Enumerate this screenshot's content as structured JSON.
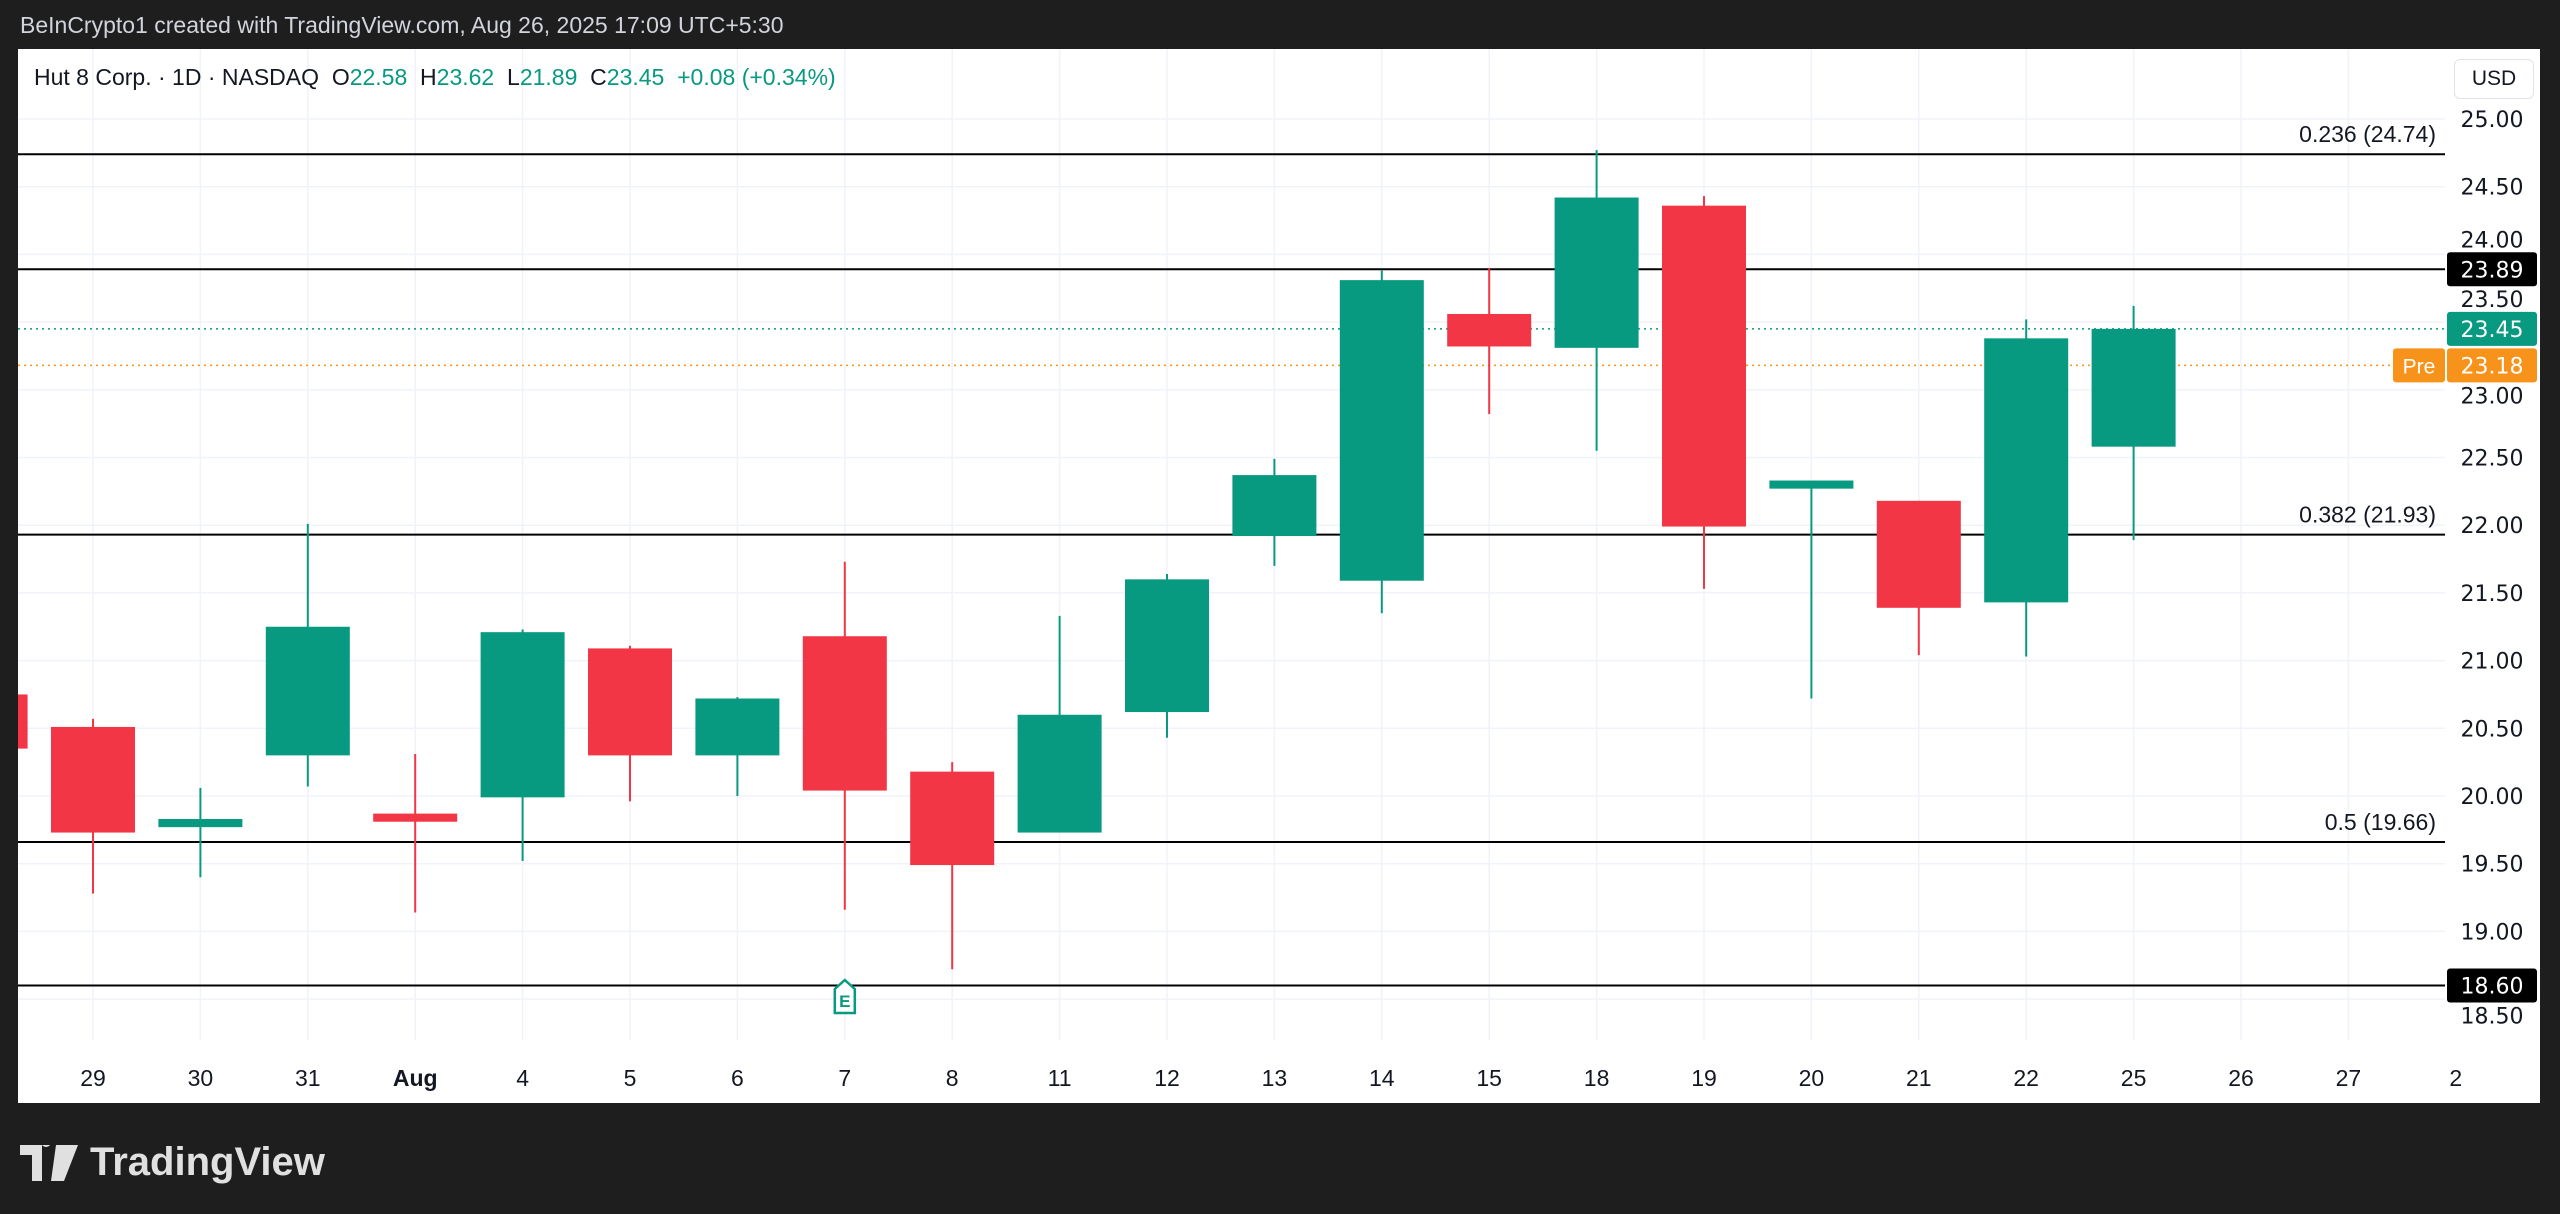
{
  "caption": "BeInCrypto1 created with TradingView.com, Aug 26, 2025 17:09 UTC+5:30",
  "legend": {
    "symbol": "Hut 8 Corp. · 1D · NASDAQ",
    "o_label": "O",
    "o": "22.58",
    "h_label": "H",
    "h": "23.62",
    "l_label": "L",
    "l": "21.89",
    "c_label": "C",
    "c": "23.45",
    "change": "+0.08 (+0.34%)"
  },
  "currency": "USD",
  "brand": "TradingView",
  "colors": {
    "up": "#089981",
    "down": "#f23645",
    "pre": "#f7931a",
    "level": "#000000"
  },
  "chart_data": {
    "type": "candlestick",
    "ylim": [
      18.3,
      25.2
    ],
    "yticks": [
      "25.00",
      "24.50",
      "24.00",
      "23.50",
      "23.00",
      "22.50",
      "22.00",
      "21.50",
      "21.00",
      "20.50",
      "20.00",
      "19.50",
      "19.00",
      "18.50"
    ],
    "x_labels": [
      "29",
      "30",
      "31",
      "Aug",
      "4",
      "5",
      "6",
      "7",
      "8",
      "11",
      "12",
      "13",
      "14",
      "15",
      "18",
      "19",
      "20",
      "21",
      "22",
      "25",
      "26",
      "27",
      "2"
    ],
    "candles": [
      {
        "date": "Jul 28",
        "o": 20.75,
        "h": 20.8,
        "l": 20.3,
        "c": 20.35
      },
      {
        "date": "29",
        "o": 20.51,
        "h": 20.57,
        "l": 19.28,
        "c": 19.73
      },
      {
        "date": "30",
        "o": 19.77,
        "h": 20.06,
        "l": 19.4,
        "c": 19.83
      },
      {
        "date": "31",
        "o": 20.3,
        "h": 22.01,
        "l": 20.07,
        "c": 21.25
      },
      {
        "date": "Aug 1",
        "o": 19.87,
        "h": 20.31,
        "l": 19.14,
        "c": 19.81
      },
      {
        "date": "4",
        "o": 19.99,
        "h": 21.23,
        "l": 19.52,
        "c": 21.21
      },
      {
        "date": "5",
        "o": 21.09,
        "h": 21.11,
        "l": 19.96,
        "c": 20.3
      },
      {
        "date": "6",
        "o": 20.3,
        "h": 20.73,
        "l": 20.0,
        "c": 20.72
      },
      {
        "date": "7",
        "o": 21.18,
        "h": 21.73,
        "l": 19.16,
        "c": 20.04
      },
      {
        "date": "8",
        "o": 20.18,
        "h": 20.25,
        "l": 18.72,
        "c": 19.49
      },
      {
        "date": "11",
        "o": 19.73,
        "h": 21.33,
        "l": 19.73,
        "c": 20.6
      },
      {
        "date": "12",
        "o": 20.62,
        "h": 21.64,
        "l": 20.43,
        "c": 21.6
      },
      {
        "date": "13",
        "o": 21.92,
        "h": 22.49,
        "l": 21.7,
        "c": 22.37
      },
      {
        "date": "14",
        "o": 21.59,
        "h": 23.88,
        "l": 21.35,
        "c": 23.81
      },
      {
        "date": "15",
        "o": 23.56,
        "h": 23.9,
        "l": 22.82,
        "c": 23.32
      },
      {
        "date": "18",
        "o": 23.31,
        "h": 24.77,
        "l": 22.55,
        "c": 24.42
      },
      {
        "date": "19",
        "o": 24.36,
        "h": 24.43,
        "l": 21.53,
        "c": 21.99
      },
      {
        "date": "20",
        "o": 22.27,
        "h": 22.33,
        "l": 20.72,
        "c": 22.33
      },
      {
        "date": "21",
        "o": 22.18,
        "h": 22.18,
        "l": 21.04,
        "c": 21.39
      },
      {
        "date": "22",
        "o": 21.43,
        "h": 23.52,
        "l": 21.03,
        "c": 23.38
      },
      {
        "date": "25",
        "o": 22.58,
        "h": 23.62,
        "l": 21.89,
        "c": 23.45
      }
    ],
    "levels": [
      {
        "value": 24.74,
        "label": "0.236 (24.74)"
      },
      {
        "value": 23.89,
        "tag": "23.89"
      },
      {
        "value": 21.93,
        "label": "0.382 (21.93)"
      },
      {
        "value": 19.66,
        "label": "0.5 (19.66)"
      },
      {
        "value": 18.6,
        "tag": "18.60"
      }
    ],
    "last_price": {
      "value": 23.45,
      "tag": "23.45"
    },
    "pre_market": {
      "value": 23.18,
      "tag": "23.18",
      "label": "Pre"
    },
    "earnings_marker": {
      "date": "7",
      "label": "E"
    }
  }
}
